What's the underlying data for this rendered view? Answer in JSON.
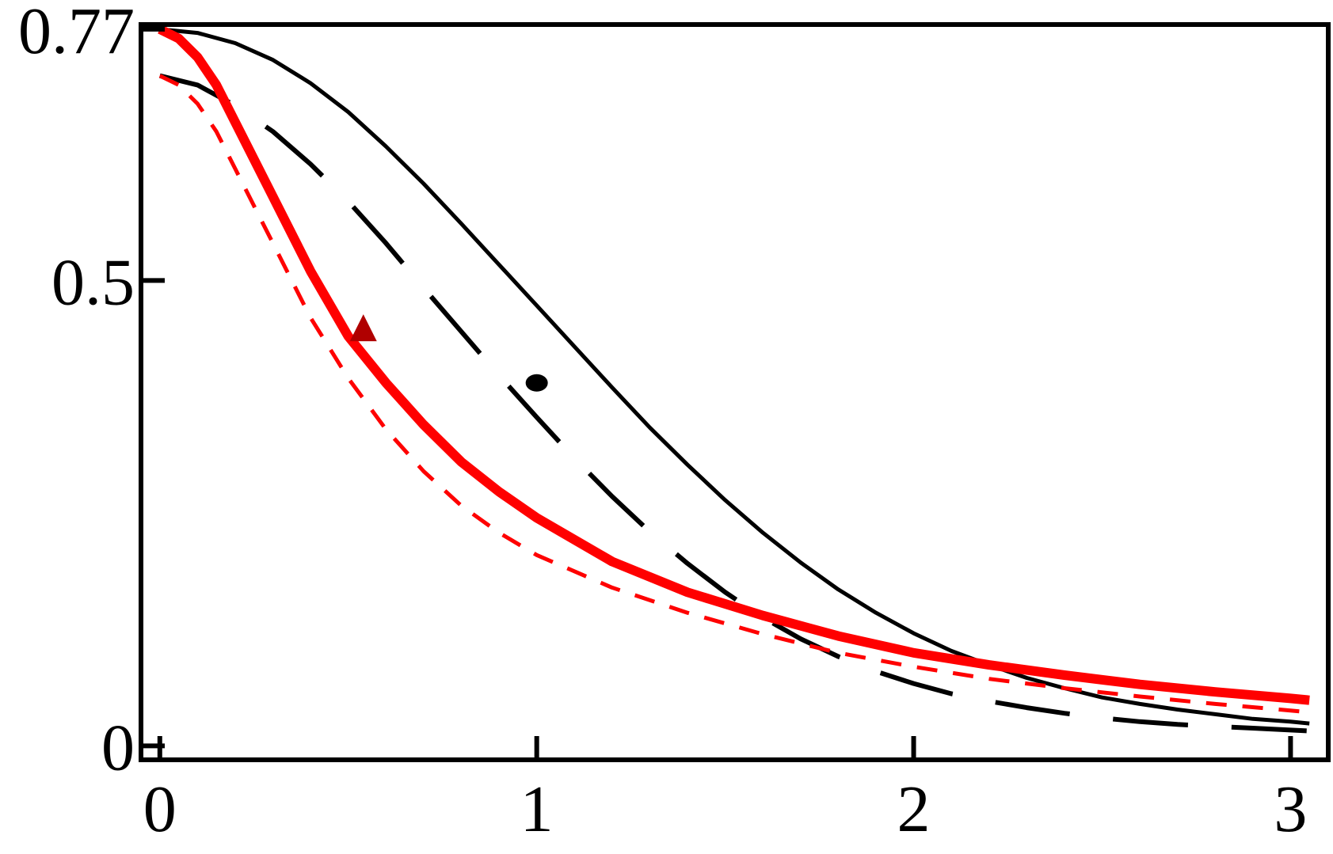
{
  "chart_data": {
    "type": "line",
    "title": "",
    "xlabel": "",
    "ylabel": "",
    "xlim": [
      -0.05,
      3.1
    ],
    "ylim": [
      -0.015,
      0.775
    ],
    "grid": false,
    "legend": "none",
    "x_ticks": [
      {
        "value": 0,
        "label": "0"
      },
      {
        "value": 1,
        "label": "1"
      },
      {
        "value": 2,
        "label": "2"
      },
      {
        "value": 3,
        "label": "3"
      }
    ],
    "y_ticks": [
      {
        "value": 0,
        "label": "0"
      },
      {
        "value": 0.5,
        "label": "0.5"
      },
      {
        "value": 0.77,
        "label": "0.77"
      }
    ],
    "series": [
      {
        "style": "solid-thin",
        "color": "#000000",
        "x": [
          0,
          0.1,
          0.2,
          0.3,
          0.4,
          0.5,
          0.6,
          0.7,
          0.8,
          0.9,
          1.0,
          1.1,
          1.2,
          1.3,
          1.4,
          1.5,
          1.6,
          1.7,
          1.8,
          1.9,
          2.0,
          2.1,
          2.2,
          2.3,
          2.4,
          2.5,
          2.6,
          2.7,
          2.8,
          2.9,
          3.0,
          3.05
        ],
        "y": [
          0.77,
          0.766,
          0.755,
          0.737,
          0.712,
          0.681,
          0.644,
          0.604,
          0.561,
          0.517,
          0.473,
          0.429,
          0.385,
          0.342,
          0.302,
          0.264,
          0.229,
          0.197,
          0.168,
          0.143,
          0.121,
          0.102,
          0.087,
          0.073,
          0.062,
          0.052,
          0.045,
          0.039,
          0.034,
          0.029,
          0.026,
          0.024
        ]
      },
      {
        "style": "long-dash",
        "color": "#000000",
        "x": [
          0,
          0.1,
          0.2,
          0.3,
          0.4,
          0.5,
          0.6,
          0.7,
          0.8,
          0.9,
          1.0,
          1.1,
          1.2,
          1.3,
          1.4,
          1.5,
          1.6,
          1.7,
          1.8,
          1.9,
          2.0,
          2.1,
          2.2,
          2.3,
          2.4,
          2.5,
          2.6,
          2.7,
          2.8,
          2.9,
          3.0,
          3.05
        ],
        "y": [
          0.72,
          0.71,
          0.688,
          0.66,
          0.625,
          0.585,
          0.54,
          0.492,
          0.445,
          0.398,
          0.353,
          0.309,
          0.268,
          0.23,
          0.196,
          0.165,
          0.138,
          0.115,
          0.096,
          0.08,
          0.067,
          0.056,
          0.048,
          0.041,
          0.035,
          0.03,
          0.026,
          0.023,
          0.021,
          0.019,
          0.017,
          0.016
        ]
      },
      {
        "style": "solid-thick",
        "color": "#ff0000",
        "x": [
          0,
          0.05,
          0.1,
          0.15,
          0.2,
          0.3,
          0.4,
          0.5,
          0.6,
          0.7,
          0.8,
          0.9,
          1.0,
          1.2,
          1.4,
          1.6,
          1.8,
          2.0,
          2.2,
          2.4,
          2.6,
          2.8,
          3.0,
          3.05
        ],
        "y": [
          0.77,
          0.76,
          0.74,
          0.71,
          0.67,
          0.59,
          0.51,
          0.44,
          0.39,
          0.345,
          0.305,
          0.273,
          0.245,
          0.198,
          0.165,
          0.14,
          0.118,
          0.1,
          0.087,
          0.076,
          0.066,
          0.058,
          0.051,
          0.049
        ]
      },
      {
        "style": "short-dash",
        "color": "#ff0000",
        "x": [
          0,
          0.05,
          0.1,
          0.15,
          0.2,
          0.3,
          0.4,
          0.5,
          0.6,
          0.7,
          0.8,
          0.9,
          1.0,
          1.2,
          1.4,
          1.6,
          1.8,
          2.0,
          2.2,
          2.4,
          2.6,
          2.8,
          3.0,
          3.05
        ],
        "y": [
          0.72,
          0.71,
          0.69,
          0.66,
          0.62,
          0.54,
          0.46,
          0.395,
          0.34,
          0.295,
          0.258,
          0.229,
          0.205,
          0.17,
          0.143,
          0.12,
          0.1,
          0.085,
          0.072,
          0.062,
          0.053,
          0.045,
          0.038,
          0.036
        ]
      }
    ],
    "markers": [
      {
        "shape": "circle",
        "color": "#000000",
        "x": 1.0,
        "y": 0.39
      },
      {
        "shape": "triangle",
        "color": "#b00000",
        "x": 0.54,
        "y": 0.445
      }
    ]
  }
}
